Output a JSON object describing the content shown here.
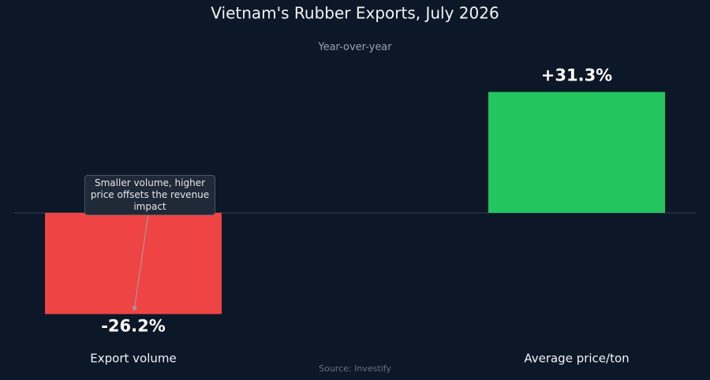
{
  "chart_data": {
    "type": "bar",
    "title": "Vietnam's Rubber Exports, July 2026",
    "subtitle": "Year-over-year",
    "categories": [
      "Export volume",
      "Average price/ton"
    ],
    "values": [
      -26.2,
      31.3
    ],
    "value_labels": [
      "-26.2%",
      "+31.3%"
    ],
    "colors": [
      "#ef4444",
      "#22c55e"
    ],
    "annotation": "Smaller volume, higher price offsets the revenue impact",
    "source": "Source: Investify"
  }
}
